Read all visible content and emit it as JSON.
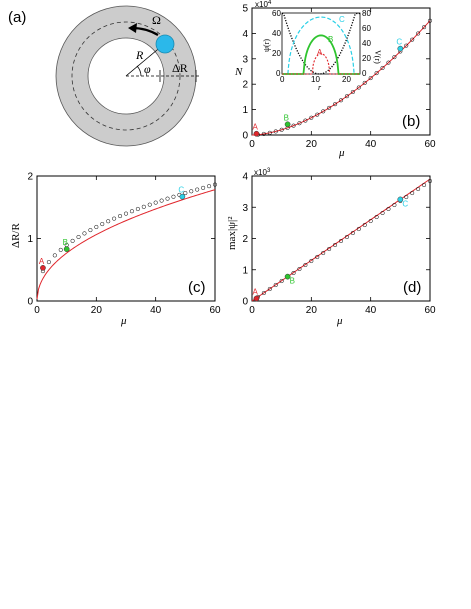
{
  "colors": {
    "red": "#e0262c",
    "green": "#2fc42f",
    "cyan": "#2ad0e6",
    "black": "#000000",
    "gray": "#cccccc",
    "blue": "#2bb8ea"
  },
  "panel_a": {
    "label": "(a)",
    "omega": "Ω",
    "R": "R",
    "phi": "φ",
    "dR": "ΔR"
  },
  "chart_data": [
    {
      "panel": "(b)",
      "type": "scatter",
      "xlabel": "μ",
      "ylabel": "N",
      "multiplier": "x10",
      "multiplier_exp": "4",
      "xlim": [
        0,
        60
      ],
      "ylim": [
        0,
        5
      ],
      "xticks": [
        "0",
        "20",
        "40",
        "60"
      ],
      "yticks": [
        "0",
        "1",
        "2",
        "3",
        "4",
        "5"
      ],
      "markers": [
        {
          "name": "A",
          "x": 1.5,
          "y": 0.05,
          "color": "#e0262c"
        },
        {
          "name": "B",
          "x": 12,
          "y": 0.42,
          "color": "#2fc42f"
        },
        {
          "name": "C",
          "x": 50,
          "y": 3.4,
          "color": "#2ad0e6"
        }
      ],
      "curve_exponent": 1.72,
      "curve_max": 4.5,
      "inset": {
        "xlabel": "r",
        "ylabel_left": "ψ(r)",
        "ylabel_right": "V(r)",
        "xlim": [
          0,
          25
        ],
        "yticks_left": [
          "0",
          "20",
          "40",
          "60"
        ],
        "yticks_right": [
          "0",
          "20",
          "40",
          "60",
          "80"
        ],
        "xticks": [
          "0",
          "10",
          "20"
        ],
        "labels": [
          "A",
          "B",
          "C"
        ]
      }
    },
    {
      "panel": "(c)",
      "type": "scatter",
      "xlabel": "μ",
      "ylabel": "ΔR/R",
      "xlim": [
        0,
        60
      ],
      "ylim": [
        0,
        2
      ],
      "xticks": [
        "0",
        "20",
        "40",
        "60"
      ],
      "yticks": [
        "0",
        "1",
        "2"
      ],
      "markers": [
        {
          "name": "A",
          "x": 2,
          "y": 0.53,
          "color": "#e0262c"
        },
        {
          "name": "B",
          "x": 10,
          "y": 0.83,
          "color": "#2fc42f"
        },
        {
          "name": "C",
          "x": 49,
          "y": 1.67,
          "color": "#2ad0e6"
        }
      ]
    },
    {
      "panel": "(d)",
      "type": "scatter",
      "xlabel": "μ",
      "ylabel": "max|ψ|²",
      "multiplier": "x10",
      "multiplier_exp": "3",
      "xlim": [
        0,
        60
      ],
      "ylim": [
        0,
        4
      ],
      "xticks": [
        "0",
        "20",
        "40",
        "60"
      ],
      "yticks": [
        "0",
        "1",
        "2",
        "3",
        "4"
      ],
      "markers": [
        {
          "name": "A",
          "x": 1.5,
          "y": 0.08,
          "color": "#e0262c"
        },
        {
          "name": "B",
          "x": 12,
          "y": 0.78,
          "color": "#2fc42f"
        },
        {
          "name": "C",
          "x": 50,
          "y": 3.25,
          "color": "#2ad0e6"
        }
      ]
    }
  ]
}
